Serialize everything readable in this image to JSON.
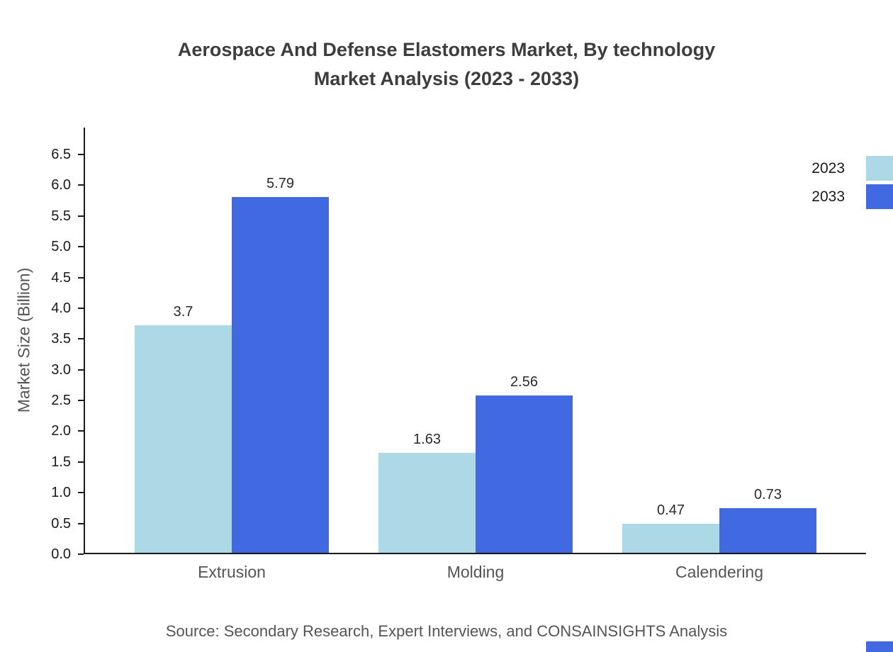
{
  "title": {
    "line1": "Aerospace And Defense Elastomers Market, By technology",
    "line2": "Market Analysis (2023 - 2033)"
  },
  "chart_data": {
    "type": "bar",
    "categories": [
      "Extrusion",
      "Molding",
      "Calendering"
    ],
    "series": [
      {
        "name": "2023",
        "color": "#ADD8E6",
        "values": [
          3.7,
          1.63,
          0.47
        ],
        "labels": [
          "3.7",
          "1.63",
          "0.47"
        ]
      },
      {
        "name": "2033",
        "color": "#4169E1",
        "values": [
          5.79,
          2.56,
          0.73
        ],
        "labels": [
          "5.79",
          "2.56",
          "0.73"
        ]
      }
    ],
    "xlabel": "",
    "ylabel": "Market Size (Billion)",
    "ylim": [
      0,
      6.5
    ],
    "ytick_step": 0.5,
    "ytick_labels": [
      "0.0",
      "0.5",
      "1.0",
      "1.5",
      "2.0",
      "2.5",
      "3.0",
      "3.5",
      "4.0",
      "4.5",
      "5.0",
      "5.5",
      "6.0",
      "6.5"
    ],
    "grid": false,
    "legend_position": "top-right"
  },
  "source": "Source: Secondary Research, Expert Interviews, and CONSAINSIGHTS Analysis"
}
